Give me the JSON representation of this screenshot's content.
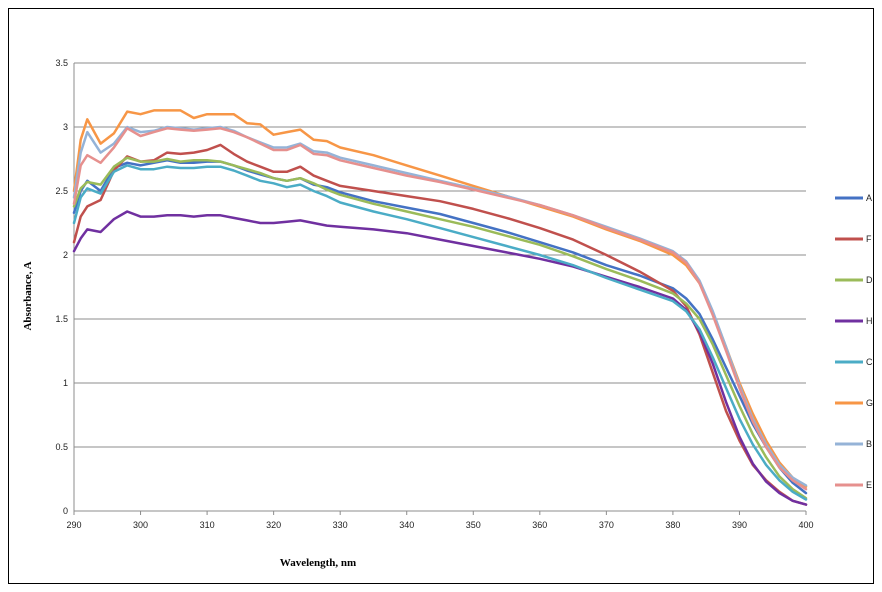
{
  "chart_data": {
    "type": "line",
    "title": "",
    "xlabel": "Wavelength, nm",
    "ylabel": "Absorbance, A",
    "xlim": [
      290,
      400
    ],
    "ylim": [
      0,
      3.5
    ],
    "x_ticks": [
      "290",
      "300",
      "310",
      "320",
      "330",
      "340",
      "350",
      "360",
      "370",
      "380",
      "390",
      "400"
    ],
    "y_ticks": [
      "0",
      "0.5",
      "1",
      "1.5",
      "2",
      "2.5",
      "3",
      "3.5"
    ],
    "grid": "horizontal",
    "legend": "right",
    "x": [
      290,
      291,
      292,
      294,
      296,
      298,
      300,
      302,
      304,
      306,
      308,
      310,
      312,
      314,
      316,
      318,
      320,
      322,
      324,
      326,
      328,
      330,
      335,
      340,
      345,
      350,
      355,
      360,
      365,
      370,
      375,
      380,
      382,
      384,
      386,
      388,
      390,
      392,
      394,
      396,
      398,
      400
    ],
    "series": [
      {
        "name": "A",
        "color": "#4472c4",
        "values": [
          2.33,
          2.5,
          2.58,
          2.5,
          2.68,
          2.72,
          2.7,
          2.72,
          2.74,
          2.72,
          2.72,
          2.73,
          2.73,
          2.7,
          2.66,
          2.63,
          2.6,
          2.58,
          2.6,
          2.55,
          2.53,
          2.49,
          2.42,
          2.37,
          2.32,
          2.25,
          2.18,
          2.1,
          2.02,
          1.92,
          1.84,
          1.74,
          1.66,
          1.54,
          1.34,
          1.12,
          0.9,
          0.68,
          0.5,
          0.34,
          0.22,
          0.14
        ]
      },
      {
        "name": "F",
        "color": "#c0504d",
        "values": [
          2.1,
          2.3,
          2.38,
          2.43,
          2.66,
          2.77,
          2.73,
          2.74,
          2.8,
          2.79,
          2.8,
          2.82,
          2.86,
          2.79,
          2.73,
          2.69,
          2.65,
          2.65,
          2.69,
          2.62,
          2.58,
          2.54,
          2.5,
          2.46,
          2.42,
          2.36,
          2.29,
          2.21,
          2.12,
          2.0,
          1.87,
          1.72,
          1.6,
          1.38,
          1.08,
          0.78,
          0.55,
          0.36,
          0.24,
          0.15,
          0.08,
          0.05
        ]
      },
      {
        "name": "D",
        "color": "#9bbb59",
        "values": [
          2.38,
          2.52,
          2.57,
          2.55,
          2.69,
          2.76,
          2.73,
          2.73,
          2.75,
          2.73,
          2.74,
          2.74,
          2.73,
          2.7,
          2.67,
          2.64,
          2.6,
          2.58,
          2.6,
          2.56,
          2.51,
          2.47,
          2.4,
          2.34,
          2.28,
          2.22,
          2.15,
          2.08,
          1.99,
          1.89,
          1.8,
          1.7,
          1.62,
          1.5,
          1.3,
          1.06,
          0.82,
          0.6,
          0.42,
          0.27,
          0.17,
          0.1
        ]
      },
      {
        "name": "H",
        "color": "#7030a0",
        "values": [
          2.03,
          2.13,
          2.2,
          2.18,
          2.28,
          2.34,
          2.3,
          2.3,
          2.31,
          2.31,
          2.3,
          2.31,
          2.31,
          2.29,
          2.27,
          2.25,
          2.25,
          2.26,
          2.27,
          2.25,
          2.23,
          2.22,
          2.2,
          2.17,
          2.12,
          2.07,
          2.02,
          1.97,
          1.91,
          1.83,
          1.75,
          1.66,
          1.57,
          1.4,
          1.15,
          0.85,
          0.58,
          0.37,
          0.23,
          0.14,
          0.08,
          0.05
        ]
      },
      {
        "name": "C",
        "color": "#4bacc6",
        "values": [
          2.25,
          2.45,
          2.52,
          2.48,
          2.65,
          2.7,
          2.67,
          2.67,
          2.69,
          2.68,
          2.68,
          2.69,
          2.69,
          2.66,
          2.62,
          2.58,
          2.56,
          2.53,
          2.55,
          2.5,
          2.46,
          2.41,
          2.34,
          2.28,
          2.21,
          2.14,
          2.07,
          2.0,
          1.92,
          1.82,
          1.73,
          1.64,
          1.56,
          1.42,
          1.2,
          0.96,
          0.72,
          0.52,
          0.36,
          0.24,
          0.15,
          0.09
        ]
      },
      {
        "name": "G",
        "color": "#f79646",
        "values": [
          2.5,
          2.9,
          3.06,
          2.87,
          2.95,
          3.12,
          3.1,
          3.13,
          3.13,
          3.13,
          3.07,
          3.1,
          3.1,
          3.1,
          3.03,
          3.02,
          2.94,
          2.96,
          2.98,
          2.9,
          2.89,
          2.84,
          2.78,
          2.7,
          2.62,
          2.54,
          2.46,
          2.38,
          2.3,
          2.2,
          2.11,
          2.0,
          1.92,
          1.78,
          1.55,
          1.28,
          1.0,
          0.76,
          0.55,
          0.38,
          0.26,
          0.19
        ]
      },
      {
        "name": "B",
        "color": "#95b3d7",
        "values": [
          2.45,
          2.8,
          2.96,
          2.8,
          2.87,
          3.0,
          2.96,
          2.97,
          3.0,
          2.99,
          2.98,
          2.99,
          3.0,
          2.97,
          2.92,
          2.88,
          2.84,
          2.84,
          2.87,
          2.81,
          2.8,
          2.76,
          2.7,
          2.64,
          2.58,
          2.52,
          2.46,
          2.39,
          2.31,
          2.22,
          2.13,
          2.03,
          1.95,
          1.8,
          1.56,
          1.28,
          0.98,
          0.72,
          0.52,
          0.36,
          0.26,
          0.2
        ]
      },
      {
        "name": "E",
        "color": "#e6908e",
        "values": [
          2.4,
          2.7,
          2.78,
          2.72,
          2.84,
          2.99,
          2.93,
          2.96,
          2.99,
          2.98,
          2.97,
          2.98,
          2.99,
          2.96,
          2.92,
          2.87,
          2.82,
          2.82,
          2.86,
          2.79,
          2.78,
          2.74,
          2.68,
          2.62,
          2.57,
          2.51,
          2.45,
          2.39,
          2.31,
          2.21,
          2.12,
          2.02,
          1.94,
          1.78,
          1.53,
          1.25,
          0.96,
          0.7,
          0.5,
          0.34,
          0.24,
          0.17
        ]
      }
    ]
  }
}
